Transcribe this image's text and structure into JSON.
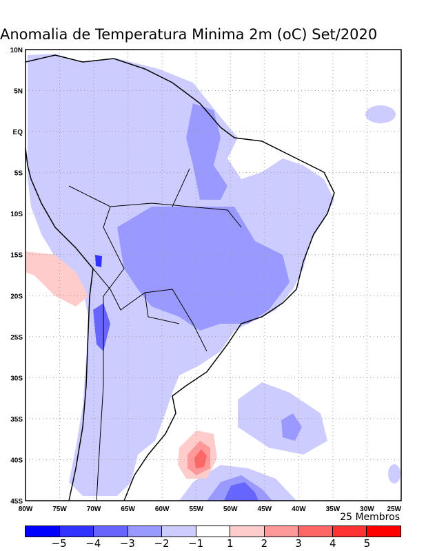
{
  "title": "Anomalia de Temperatura Minima 2m (oC) Set/2020",
  "members": "25 Membros",
  "lat_labels": [
    "10N",
    "5N",
    "EQ",
    "5S",
    "10S",
    "15S",
    "20S",
    "25S",
    "30S",
    "35S",
    "40S",
    "45S"
  ],
  "lon_labels": [
    "80W",
    "75W",
    "70W",
    "65W",
    "60W",
    "55W",
    "50W",
    "45W",
    "40W",
    "35W",
    "30W",
    "25W"
  ],
  "colorbar": {
    "colors": [
      "#0000ff",
      "#3333ff",
      "#6666ff",
      "#9999ff",
      "#ccccff",
      "#ffffff",
      "#ffcccc",
      "#ff9999",
      "#ff6666",
      "#ff3333",
      "#ff0000"
    ],
    "labels": [
      "-5",
      "-4",
      "-3",
      "-2",
      "-1",
      "1",
      "2",
      "3",
      "4",
      "5"
    ]
  }
}
